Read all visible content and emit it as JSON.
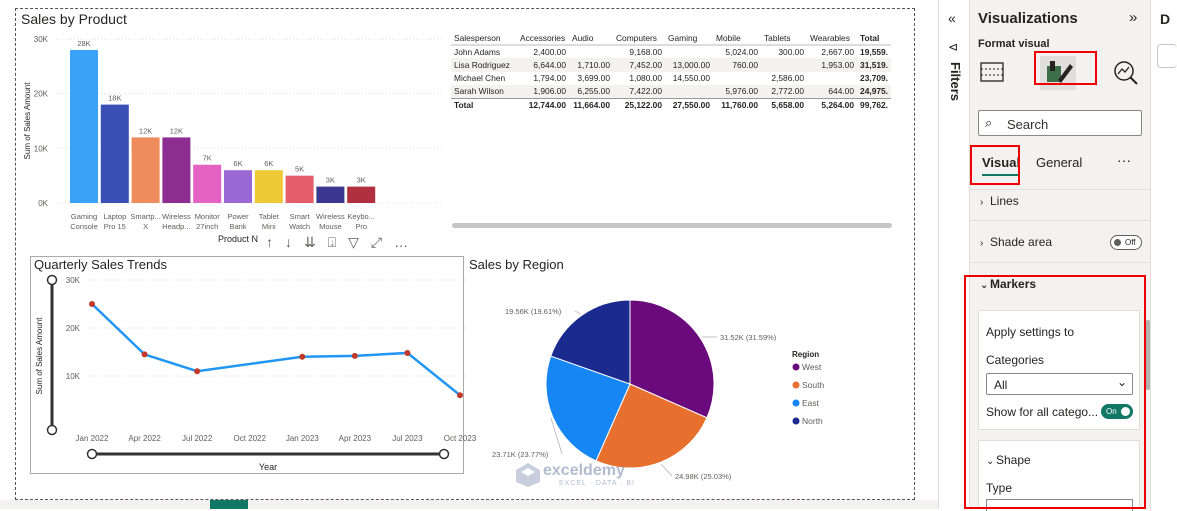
{
  "colors": {
    "accent": "#117865",
    "red_highlight": "#e00000",
    "line_series": "#2196f3",
    "marker": "#c0392b"
  },
  "bar_chart": {
    "title": "Sales by Product",
    "xlabel": "Product N",
    "ylabel": "Sum of Sales Amount",
    "chart_data": {
      "type": "bar",
      "title": "Sales by Product",
      "xlabel": "Product N",
      "ylabel": "Sum of Sales Amount",
      "ylim": [
        0,
        30000
      ],
      "y_ticks": [
        "30K",
        "20K",
        "10K",
        "0K"
      ],
      "categories": [
        [
          "Gaming",
          "Console"
        ],
        [
          "Laptop",
          "Pro 15"
        ],
        [
          "Smartp...",
          "X"
        ],
        [
          "Wireless",
          "Headp..."
        ],
        [
          "Monitor",
          "27inch"
        ],
        [
          "Power",
          "Bank"
        ],
        [
          "Tablet",
          "Mini"
        ],
        [
          "Smart",
          "Watch"
        ],
        [
          "Wireless",
          "Mouse"
        ],
        [
          "Keybo...",
          "Pro"
        ]
      ],
      "values": [
        28000,
        18000,
        12000,
        12000,
        7000,
        6000,
        6000,
        5000,
        3000,
        3000
      ],
      "labels": [
        "28K",
        "18K",
        "12K",
        "12K",
        "7K",
        "6K",
        "6K",
        "5K",
        "3K",
        "3K"
      ],
      "colors": [
        "#3aa3f8",
        "#3a4fb5",
        "#ef8c5e",
        "#8c2d91",
        "#e462c2",
        "#9b69d6",
        "#eec936",
        "#e35d6a",
        "#3b3891",
        "#b0303f"
      ]
    }
  },
  "matrix": {
    "headers": [
      "Salesperson",
      "Accessories",
      "Audio",
      "Computers",
      "Gaming",
      "Mobile",
      "Tablets",
      "Wearables",
      "Total"
    ],
    "rows": [
      [
        "John Adams",
        "2,400.00",
        "",
        "9,168.00",
        "",
        "5,024.00",
        "300.00",
        "2,667.00",
        "19,559."
      ],
      [
        "Lisa Rodriguez",
        "6,644.00",
        "1,710.00",
        "7,452.00",
        "13,000.00",
        "760.00",
        "",
        "1,953.00",
        "31,519."
      ],
      [
        "Michael Chen",
        "1,794.00",
        "3,699.00",
        "1,080.00",
        "14,550.00",
        "",
        "2,586.00",
        "",
        "23,709."
      ],
      [
        "Sarah Wilson",
        "1,906.00",
        "6,255.00",
        "7,422.00",
        "",
        "5,976.00",
        "2,772.00",
        "644.00",
        "24,975."
      ]
    ],
    "total": [
      "Total",
      "12,744.00",
      "11,664.00",
      "25,122.00",
      "27,550.00",
      "11,760.00",
      "5,658.00",
      "5,264.00",
      "99,762."
    ]
  },
  "line_chart": {
    "title": "Quarterly Sales Trends",
    "xlabel": "Year",
    "ylabel": "Sum of Sales Amount",
    "chart_data": {
      "type": "line",
      "title": "Quarterly Sales Trends",
      "xlabel": "Year",
      "ylabel": "Sum of Sales Amount",
      "ylim": [
        5000,
        30000
      ],
      "y_ticks": [
        "30K",
        "20K",
        "10K"
      ],
      "x": [
        "Jan 2022",
        "Apr 2022",
        "Jul 2022",
        "Oct 2022",
        "Jan 2023",
        "Apr 2023",
        "Jul 2023",
        "Oct 2023"
      ],
      "points": [
        {
          "x": "Jan 2022",
          "y": 25000
        },
        {
          "x": "Apr 2022",
          "y": 14500
        },
        {
          "x": "Jul 2022",
          "y": 11000
        },
        {
          "x": "Jan 2023",
          "y": 14000
        },
        {
          "x": "Apr 2023",
          "y": 14200
        },
        {
          "x": "Jul 2023",
          "y": 14800
        },
        {
          "x": "Oct 2023",
          "y": 6000
        }
      ]
    }
  },
  "pie_chart": {
    "title": "Sales by Region",
    "legend_title": "Region",
    "chart_data": {
      "type": "pie",
      "title": "Sales by Region",
      "legend_position": "right",
      "slices": [
        {
          "name": "West",
          "value": 31520,
          "label": "31.52K (31.59%)",
          "color": "#6a0a7d"
        },
        {
          "name": "South",
          "value": 24980,
          "label": "24.98K (25.03%)",
          "color": "#e8702f"
        },
        {
          "name": "East",
          "value": 23710,
          "label": "23.71K (23.77%)",
          "color": "#1786f5"
        },
        {
          "name": "North",
          "value": 19560,
          "label": "19.56K (19.61%)",
          "color": "#1b2a8f"
        }
      ]
    }
  },
  "watermark": {
    "brand": "exceldemy",
    "tagline": "EXCEL · DATA · BI"
  },
  "filters": {
    "label": "Filters"
  },
  "viz_pane": {
    "title": "Visualizations",
    "format_label": "Format visual",
    "search_placeholder": "Search",
    "tabs": [
      "Visual",
      "General"
    ],
    "more": "···",
    "sections": {
      "lines": "Lines",
      "shade_area": "Shade area",
      "shade_toggle": "Off",
      "markers": "Markers",
      "apply_settings": "Apply settings to",
      "categories_label": "Categories",
      "categories_value": "All",
      "show_all": "Show for all catego...",
      "show_toggle": "On",
      "shape": "Shape",
      "type": "Type"
    }
  },
  "data_pane": {
    "label": "D"
  }
}
